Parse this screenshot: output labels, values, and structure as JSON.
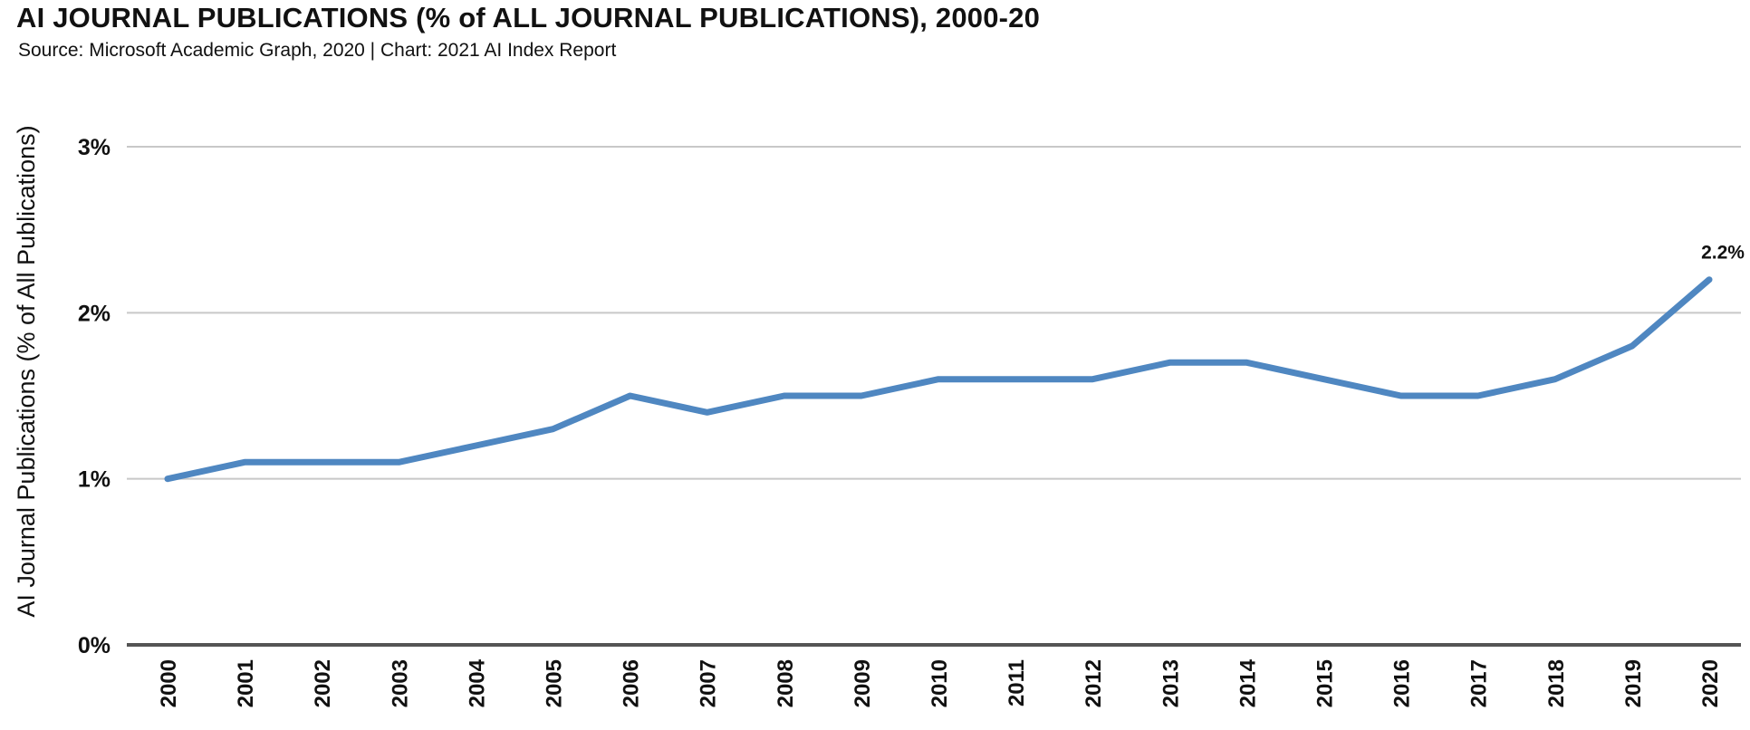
{
  "header": {
    "title": "AI JOURNAL PUBLICATIONS (% of ALL JOURNAL PUBLICATIONS), 2000-20",
    "subtitle": "Source: Microsoft Academic Graph, 2020 | Chart: 2021 AI Index Report"
  },
  "chart_data": {
    "type": "line",
    "title": "AI JOURNAL PUBLICATIONS (% of ALL JOURNAL PUBLICATIONS), 2000-20",
    "subtitle": "Source: Microsoft Academic Graph, 2020 | Chart: 2021 AI Index Report",
    "xlabel": "",
    "ylabel": "AI Journal Publications (% of All Publications)",
    "categories": [
      "2000",
      "2001",
      "2002",
      "2003",
      "2004",
      "2005",
      "2006",
      "2007",
      "2008",
      "2009",
      "2010",
      "2011",
      "2012",
      "2013",
      "2014",
      "2015",
      "2016",
      "2017",
      "2018",
      "2019",
      "2020"
    ],
    "series": [
      {
        "values": [
          1.0,
          1.1,
          1.1,
          1.1,
          1.2,
          1.3,
          1.5,
          1.4,
          1.5,
          1.5,
          1.6,
          1.6,
          1.6,
          1.7,
          1.7,
          1.6,
          1.5,
          1.5,
          1.6,
          1.8,
          2.2
        ],
        "color": "#4f87c1"
      }
    ],
    "ylim": [
      0,
      3
    ],
    "yticks": [
      0,
      1,
      2,
      3
    ],
    "ytick_labels": [
      "0%",
      "1%",
      "2%",
      "3%"
    ],
    "data_labels": [
      {
        "category": "2020",
        "text": "2.2%"
      }
    ],
    "grid": true,
    "gridline_color": "#c8c8c8",
    "axis_color": "#555555",
    "legend": "none"
  }
}
